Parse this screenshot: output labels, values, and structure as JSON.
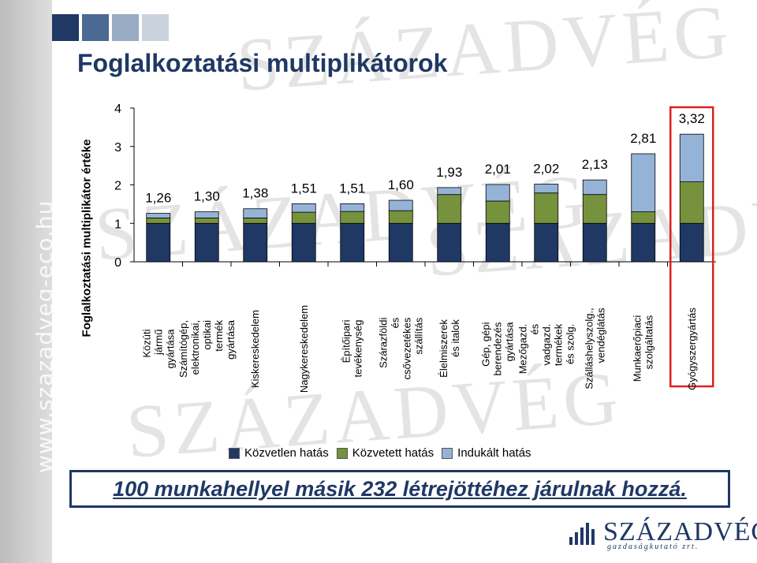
{
  "slide": {
    "title": "Foglalkoztatási multiplikátorok",
    "side_url": "www.szazadveg-eco.hu",
    "summary": "100 munkahellyel másik 232 létrejöttéhez járulnak hozzá.",
    "logo": {
      "name": "SZÁZADVÉG",
      "tagline": "gazdaságkutató zrt."
    },
    "square_colors": [
      "#1f3864",
      "#4a6a94",
      "#9aabc4",
      "#c9d2dd"
    ],
    "highlight_color": "#e02020"
  },
  "chart_data": {
    "type": "bar",
    "stacked": true,
    "ylabel": "Foglalkoztatási multiplikátor értéke",
    "ylim": [
      0,
      4
    ],
    "yticks": [
      "0",
      "1",
      "2",
      "3",
      "4"
    ],
    "grid": false,
    "legend_position": "bottom",
    "categories": [
      "Közúti jármű gyártása",
      "Számítógép, elektronikai, optikai termék gyártása",
      "Kiskereskedelem",
      "Nagykereskedelem",
      "Építőipari tevékenység",
      "Szárazföldi és csővezetékes szállítás",
      "Élelmiszerek és italok",
      "Gép, gépi berendezés gyártása",
      "Mezőgazd. és vadgazd. termékek és szolg.",
      "Szálláshelyszolg., vendéglátás",
      "Munkaerőpiaci szolgáltatás",
      "Gyógyszergyártás"
    ],
    "totals_labels": [
      "1,26",
      "1,30",
      "1,38",
      "1,51",
      "1,51",
      "1,60",
      "1,93",
      "2,01",
      "2,02",
      "2,13",
      "2,81",
      "3,32"
    ],
    "series": [
      {
        "name": "Közvetlen hatás",
        "color": "#1f3864",
        "values": [
          1,
          1,
          1,
          1,
          1,
          1,
          1,
          1,
          1,
          1,
          1,
          1
        ]
      },
      {
        "name": "Közvetett hatás",
        "color": "#76923c",
        "values": [
          0.14,
          0.14,
          0.14,
          0.29,
          0.31,
          0.33,
          0.75,
          0.58,
          0.79,
          0.75,
          0.3,
          1.08
        ]
      },
      {
        "name": "Indukált hatás",
        "color": "#95b3d7",
        "values": [
          0.12,
          0.16,
          0.24,
          0.22,
          0.2,
          0.27,
          0.18,
          0.43,
          0.23,
          0.38,
          1.51,
          1.24
        ]
      }
    ],
    "highlighted_category": "Gyógyszergyártás"
  }
}
